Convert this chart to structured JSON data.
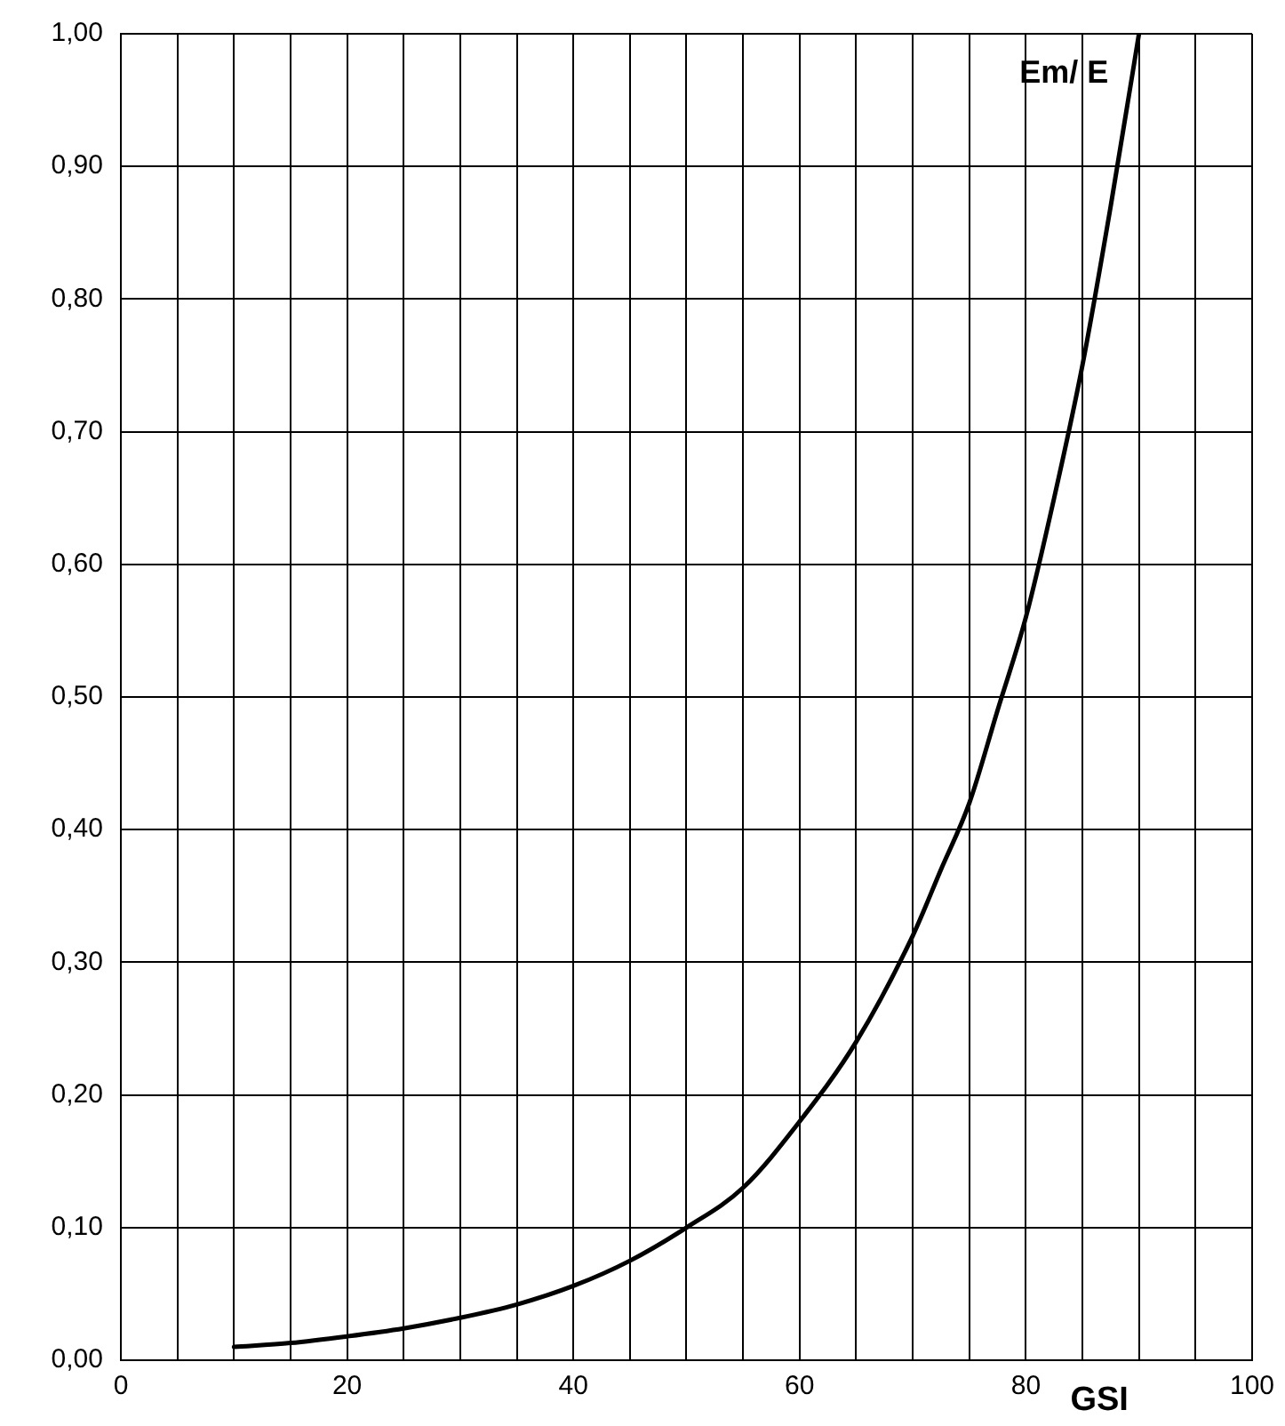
{
  "chart_data": {
    "type": "line",
    "xlabel": "GSI",
    "ylabel": "Em/ E",
    "x": [
      10,
      15,
      20,
      25,
      30,
      35,
      40,
      45,
      50,
      55,
      60,
      65,
      70,
      72.5,
      75,
      77.5,
      80,
      82.5,
      85,
      87.5,
      90
    ],
    "series": [
      {
        "color": "#000000",
        "values": [
          0.01,
          0.013,
          0.018,
          0.024,
          0.032,
          0.042,
          0.056,
          0.075,
          0.1,
          0.13,
          0.18,
          0.24,
          0.32,
          0.37,
          0.42,
          0.49,
          0.56,
          0.65,
          0.75,
          0.87,
          1.0
        ]
      }
    ],
    "xlim": [
      0,
      100
    ],
    "xticks": [
      0,
      {
        "value": 5,
        "label": null
      },
      {
        "value": 10,
        "label": null
      },
      {
        "value": 15,
        "label": null
      },
      20,
      {
        "value": 25,
        "label": null
      },
      {
        "value": 30,
        "label": null
      },
      {
        "value": 35,
        "label": null
      },
      40,
      {
        "value": 45,
        "label": null
      },
      {
        "value": 50,
        "label": null
      },
      {
        "value": 55,
        "label": null
      },
      60,
      {
        "value": 65,
        "label": null
      },
      {
        "value": 70,
        "label": null
      },
      {
        "value": 75,
        "label": null
      },
      80,
      {
        "value": 85,
        "label": null
      },
      {
        "value": 90,
        "label": null
      },
      {
        "value": 95,
        "label": null
      },
      100
    ],
    "ylim": [
      0,
      1
    ],
    "yticks": [
      {
        "value": 0,
        "label": "0,00"
      },
      {
        "value": 0.1,
        "label": "0,10"
      },
      {
        "value": 0.2,
        "label": "0,20"
      },
      {
        "value": 0.3,
        "label": "0,30"
      },
      {
        "value": 0.4,
        "label": "0,40"
      },
      {
        "value": 0.5,
        "label": "0,50"
      },
      {
        "value": 0.6,
        "label": "0,60"
      },
      {
        "value": 0.7,
        "label": "0,70"
      },
      {
        "value": 0.8,
        "label": "0,80"
      },
      {
        "value": 0.9,
        "label": "0,90"
      },
      {
        "value": 1,
        "label": "1,00"
      }
    ],
    "grid": true,
    "legend": false,
    "marker": "none",
    "line_style": "solid"
  }
}
